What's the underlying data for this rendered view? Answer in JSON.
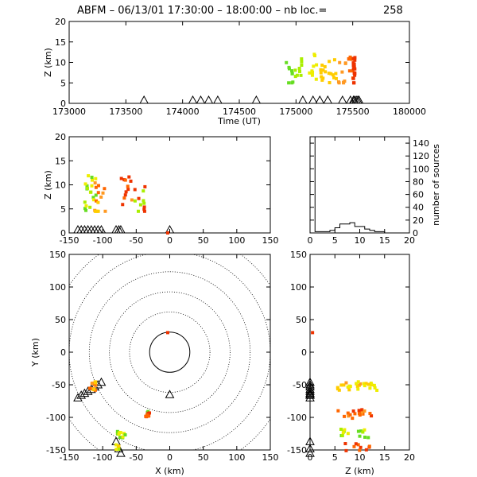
{
  "title": {
    "station": "ABFM",
    "text": "ABFM – 06/13/01 17:30:00 – 18:00:00 – nb loc.=",
    "count": "258"
  },
  "chart_data": [
    {
      "id": "time_height",
      "type": "scatter",
      "xlabel": "Time (UT)",
      "ylabel": "Z (km)",
      "xlim": [
        173000,
        180000
      ],
      "ylim": [
        0,
        20
      ],
      "xticks": [
        173000,
        173500,
        174000,
        174500,
        175000,
        175500,
        180000
      ],
      "yticks": [
        0,
        5,
        10,
        15,
        20
      ],
      "stations_x": [
        173660,
        174090,
        174160,
        174230,
        174310,
        174650,
        175060,
        175150,
        175210,
        175280,
        175410,
        175480,
        175560,
        175640,
        175780,
        175900,
        176000
      ]
    },
    {
      "id": "x_height",
      "type": "scatter",
      "xlabel": "",
      "ylabel": "Z (km)",
      "xlim": [
        -150,
        150
      ],
      "ylim": [
        0,
        20
      ],
      "xticks": [
        -150,
        -100,
        -50,
        0,
        50,
        100,
        150
      ],
      "yticks": [
        0,
        5,
        10,
        15,
        20
      ]
    },
    {
      "id": "height_histogram",
      "type": "bar",
      "xlabel": "",
      "ylabel": "number of sources",
      "xlim": [
        0,
        20
      ],
      "ylim": [
        0,
        150
      ],
      "xticks": [
        0,
        5,
        10,
        15,
        20
      ],
      "yticks": [
        0,
        20,
        40,
        60,
        80,
        100,
        120,
        140
      ],
      "bins_km": [
        0,
        1,
        2,
        3,
        4,
        5,
        6,
        7,
        8,
        9,
        10,
        11,
        12,
        13,
        14,
        15,
        16,
        17,
        18,
        19
      ],
      "counts": [
        150,
        2,
        2,
        2,
        4,
        8,
        14,
        14,
        16,
        10,
        10,
        6,
        4,
        2,
        2,
        0,
        0,
        0,
        0,
        0
      ]
    },
    {
      "id": "plan_view",
      "type": "scatter",
      "xlabel": "X (km)",
      "ylabel": "Y (km)",
      "xlim": [
        -150,
        150
      ],
      "ylim": [
        -150,
        150
      ],
      "xticks": [
        -150,
        -100,
        -50,
        0,
        50,
        100,
        150
      ],
      "yticks": [
        -150,
        -100,
        -50,
        0,
        50,
        100,
        150
      ],
      "ring_radii_km": [
        30,
        60,
        90,
        120,
        150,
        180
      ],
      "stations": [
        [
          -137,
          -70
        ],
        [
          -132,
          -66
        ],
        [
          -127,
          -63
        ],
        [
          -122,
          -60
        ],
        [
          -117,
          -57
        ],
        [
          -112,
          -53
        ],
        [
          -107,
          -50
        ],
        [
          -102,
          -46
        ],
        [
          -80,
          -137
        ],
        [
          -76,
          -148
        ],
        [
          -73,
          -155
        ],
        [
          0,
          -65
        ]
      ]
    },
    {
      "id": "height_y",
      "type": "scatter",
      "xlabel": "Z (km)",
      "ylabel": "",
      "xlim": [
        0,
        20
      ],
      "ylim": [
        -150,
        150
      ],
      "xticks": [
        0,
        5,
        10,
        15,
        20
      ],
      "yticks": [
        -150,
        -100,
        -50,
        0,
        50,
        100,
        150
      ]
    }
  ],
  "color_scale": [
    "#66dd22",
    "#aaee00",
    "#eeee00",
    "#ffcc00",
    "#ff9922",
    "#ff6600",
    "#ee3300"
  ]
}
